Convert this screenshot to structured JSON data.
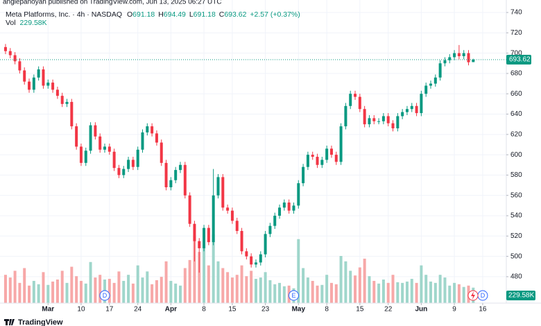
{
  "header": "anglepanoyan published on TradingView.com, Jun 13, 2025 06:27 UTC",
  "footer": "TradingView",
  "chart_data": {
    "type": "candlestick",
    "symbol": "Meta Platforms, Inc. · 4h · NASDAQ",
    "ohlc_letters": [
      "O",
      "H",
      "L",
      "C"
    ],
    "change_label": "+2.57 (+0.37%)",
    "volume_title": "Vol",
    "volume_label": "229.58K",
    "up_color": "#089981",
    "down_color": "#f23645",
    "volume_up_color": "#9fd6cb",
    "volume_down_color": "#f7a8a8",
    "grid": true,
    "xlim": [
      -1.17,
      106
    ],
    "xticks": [
      {
        "value": 9,
        "label": "Mar"
      },
      {
        "value": 16,
        "label": "10"
      },
      {
        "value": 22,
        "label": "17"
      },
      {
        "value": 28,
        "label": "24"
      },
      {
        "value": 35,
        "label": "Apr"
      },
      {
        "value": 42,
        "label": "8"
      },
      {
        "value": 48,
        "label": "15"
      },
      {
        "value": 55,
        "label": "23"
      },
      {
        "value": 62,
        "label": "May"
      },
      {
        "value": 68,
        "label": "8"
      },
      {
        "value": 75,
        "label": "15"
      },
      {
        "value": 81,
        "label": "22"
      },
      {
        "value": 88,
        "label": "Jun"
      },
      {
        "value": 95,
        "label": "9"
      },
      {
        "value": 101,
        "label": "16"
      }
    ],
    "ylim": [
      454,
      752.3
    ],
    "yticks": [
      480,
      500,
      520,
      540,
      560,
      580,
      600,
      620,
      640,
      660,
      680,
      700,
      720,
      740
    ],
    "volume_ylim": [
      0,
      4500000
    ],
    "events": [
      {
        "index": 21,
        "label": "D"
      },
      {
        "index": 61,
        "label": "E"
      },
      {
        "index": 101,
        "label": "D"
      }
    ],
    "open": [
      706,
      702,
      698,
      692,
      683,
      672,
      664,
      676,
      684,
      668,
      671,
      664,
      658,
      650,
      652,
      628,
      608,
      592,
      604,
      629,
      618,
      605,
      608,
      603,
      587,
      580,
      586,
      595,
      588,
      605,
      622,
      628,
      621,
      612,
      592,
      568,
      575,
      585,
      590,
      560,
      532,
      515,
      508,
      528,
      514,
      560,
      578,
      548,
      545,
      535,
      525,
      505,
      500,
      492,
      494,
      502,
      522,
      530,
      540,
      548,
      553,
      545,
      550,
      572,
      588,
      600,
      598,
      590,
      595,
      606,
      600,
      593,
      628,
      648,
      660,
      657,
      645,
      630,
      636,
      633,
      633,
      638,
      631,
      626,
      638,
      642,
      645,
      648,
      641,
      660,
      668,
      670,
      676,
      690,
      693,
      696,
      700,
      697,
      700,
      691.18
    ],
    "high": [
      709,
      705,
      701,
      695,
      686,
      675,
      679,
      687,
      687,
      674,
      674,
      667,
      661,
      655,
      655,
      631,
      611,
      607,
      632,
      632,
      621,
      611,
      611,
      606,
      590,
      589,
      598,
      598,
      608,
      625,
      631,
      631,
      624,
      615,
      595,
      578,
      588,
      593,
      593,
      563,
      535,
      518,
      531,
      531,
      586,
      581,
      581,
      551,
      548,
      538,
      528,
      508,
      503,
      497,
      505,
      525,
      533,
      543,
      551,
      556,
      556,
      553,
      575,
      591,
      603,
      603,
      601,
      598,
      609,
      609,
      603,
      631,
      651,
      663,
      663,
      660,
      648,
      639,
      639,
      636,
      641,
      641,
      634,
      641,
      645,
      648,
      651,
      651,
      663,
      671,
      673,
      679,
      693,
      696,
      699,
      703,
      708,
      703,
      703,
      694.49
    ],
    "low": [
      699,
      695,
      689,
      680,
      669,
      661,
      661,
      673,
      665,
      665,
      661,
      655,
      647,
      647,
      625,
      605,
      589,
      589,
      601,
      615,
      602,
      602,
      600,
      584,
      577,
      577,
      583,
      585,
      585,
      602,
      619,
      618,
      609,
      589,
      565,
      565,
      572,
      582,
      557,
      529,
      495,
      484,
      505,
      511,
      511,
      557,
      545,
      542,
      532,
      522,
      502,
      497,
      489,
      489,
      491,
      499,
      519,
      527,
      537,
      545,
      542,
      542,
      547,
      569,
      585,
      595,
      587,
      587,
      592,
      597,
      590,
      590,
      625,
      645,
      654,
      642,
      627,
      627,
      630,
      630,
      630,
      628,
      623,
      623,
      635,
      639,
      642,
      638,
      638,
      657,
      665,
      667,
      673,
      687,
      690,
      693,
      694,
      694,
      688,
      691.18
    ],
    "close": [
      702,
      698,
      692,
      683,
      672,
      664,
      676,
      684,
      668,
      671,
      664,
      658,
      650,
      652,
      628,
      608,
      592,
      604,
      629,
      618,
      605,
      608,
      603,
      587,
      580,
      586,
      595,
      588,
      605,
      622,
      628,
      621,
      612,
      592,
      568,
      575,
      585,
      590,
      560,
      532,
      515,
      508,
      528,
      514,
      560,
      578,
      548,
      545,
      535,
      525,
      505,
      500,
      492,
      494,
      502,
      522,
      530,
      540,
      548,
      553,
      545,
      550,
      572,
      588,
      600,
      598,
      590,
      595,
      606,
      600,
      593,
      628,
      648,
      660,
      657,
      645,
      630,
      636,
      633,
      633,
      638,
      631,
      626,
      638,
      642,
      645,
      648,
      641,
      660,
      668,
      670,
      676,
      690,
      693,
      696,
      700,
      697,
      700,
      691.05,
      693.62
    ],
    "volume": [
      420000,
      380000,
      480000,
      300000,
      520000,
      260000,
      330000,
      280000,
      460000,
      270000,
      320000,
      350000,
      480000,
      300000,
      540000,
      400000,
      330000,
      290000,
      610000,
      380000,
      420000,
      350000,
      360000,
      300000,
      470000,
      330000,
      420000,
      290000,
      560000,
      380000,
      470000,
      280000,
      340000,
      390000,
      620000,
      330000,
      290000,
      260000,
      520000,
      640000,
      1000000,
      760000,
      880000,
      560000,
      1020000,
      620000,
      520000,
      460000,
      380000,
      420000,
      560000,
      400000,
      480000,
      360000,
      380000,
      460000,
      340000,
      280000,
      300000,
      250000,
      260000,
      220000,
      950000,
      520000,
      380000,
      330000,
      260000,
      270000,
      420000,
      300000,
      280000,
      700000,
      620000,
      480000,
      410000,
      530000,
      660000,
      400000,
      330000,
      290000,
      350000,
      300000,
      420000,
      310000,
      300000,
      320000,
      360000,
      300000,
      560000,
      420000,
      320000,
      300000,
      420000,
      380000,
      260000,
      300000,
      280000,
      240000,
      260000,
      229580
    ]
  }
}
